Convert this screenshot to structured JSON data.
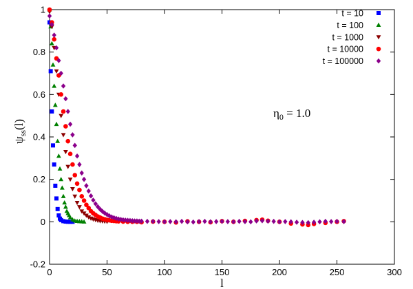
{
  "chart_data": {
    "type": "scatter",
    "xlabel": "l",
    "ylabel": {
      "base": "ψ",
      "sub": "ss",
      "tail": "(l)"
    },
    "xlim": [
      0,
      300
    ],
    "ylim": [
      -0.2,
      1
    ],
    "x_ticks": [
      0,
      50,
      100,
      150,
      200,
      250,
      300
    ],
    "y_ticks": [
      -0.2,
      0,
      0.2,
      0.4,
      0.6,
      0.8,
      1
    ],
    "x_tick_labels": [
      "0",
      "50",
      "100",
      "150",
      "200",
      "250",
      "300"
    ],
    "y_tick_labels": [
      "-0.2",
      "0",
      "0.2",
      "0.4",
      "0.6",
      "0.8",
      "1"
    ],
    "grid": false,
    "legend_position": "top-right",
    "annotation": {
      "base": "η",
      "sub": "0",
      "tail": " = 1.0"
    },
    "series": [
      {
        "name": "t = 10",
        "color": "#0000ff",
        "marker": "square",
        "x": [
          0,
          1,
          2,
          3,
          4,
          5,
          6,
          7,
          8,
          9,
          10,
          12,
          14,
          16,
          18,
          20
        ],
        "y": [
          0.94,
          0.71,
          0.52,
          0.36,
          0.27,
          0.17,
          0.11,
          0.06,
          0.03,
          0.015,
          0.008,
          0.003,
          0.001,
          0,
          0,
          0
        ]
      },
      {
        "name": "t = 100",
        "color": "#008000",
        "marker": "triangle-up",
        "x": [
          0,
          1,
          2,
          3,
          4,
          5,
          6,
          7,
          8,
          9,
          10,
          11,
          12,
          13,
          14,
          15,
          16,
          17,
          18,
          20,
          22,
          24,
          26,
          28,
          30
        ],
        "y": [
          1.0,
          0.92,
          0.84,
          0.74,
          0.64,
          0.55,
          0.46,
          0.38,
          0.31,
          0.25,
          0.2,
          0.16,
          0.12,
          0.09,
          0.07,
          0.05,
          0.04,
          0.03,
          0.02,
          0.01,
          0.005,
          0.003,
          0.002,
          0.001,
          0
        ]
      },
      {
        "name": "t = 1000",
        "color": "#8b0000",
        "marker": "triangle-down",
        "x": [
          0,
          2,
          4,
          6,
          8,
          10,
          12,
          14,
          16,
          18,
          20,
          22,
          24,
          26,
          28,
          30,
          32,
          34,
          36,
          38,
          40,
          42,
          44,
          46,
          48,
          50
        ],
        "y": [
          0.99,
          0.92,
          0.82,
          0.71,
          0.6,
          0.5,
          0.41,
          0.33,
          0.26,
          0.2,
          0.155,
          0.12,
          0.09,
          0.07,
          0.05,
          0.04,
          0.03,
          0.022,
          0.016,
          0.012,
          0.009,
          0.006,
          0.004,
          0.003,
          0.002,
          0.001
        ]
      },
      {
        "name": "t = 10000",
        "color": "#ff0000",
        "marker": "circle",
        "x": [
          0,
          2,
          4,
          6,
          8,
          10,
          12,
          14,
          16,
          18,
          20,
          22,
          24,
          26,
          28,
          30,
          32,
          34,
          36,
          38,
          40,
          42,
          44,
          46,
          48,
          50,
          52,
          54,
          56,
          58,
          60,
          64,
          68,
          72,
          76,
          80,
          90,
          100,
          110,
          120,
          130,
          140,
          150,
          160,
          170,
          180,
          185,
          190,
          200,
          210,
          220,
          225,
          230,
          240,
          250,
          256
        ],
        "y": [
          1.0,
          0.94,
          0.86,
          0.77,
          0.69,
          0.6,
          0.52,
          0.45,
          0.38,
          0.32,
          0.27,
          0.22,
          0.18,
          0.15,
          0.12,
          0.1,
          0.08,
          0.065,
          0.05,
          0.04,
          0.032,
          0.025,
          0.02,
          0.015,
          0.012,
          0.009,
          0.007,
          0.005,
          0.004,
          0.003,
          0.002,
          0.001,
          0,
          0,
          0,
          -0.002,
          0.001,
          0,
          -0.003,
          0.002,
          0,
          -0.002,
          0.003,
          0,
          0.004,
          0.008,
          0.01,
          0.005,
          0,
          -0.008,
          -0.012,
          -0.015,
          -0.01,
          -0.005,
          0,
          0.003
        ]
      },
      {
        "name": "t = 100000",
        "color": "#8b008b",
        "marker": "diamond",
        "x": [
          0,
          2,
          4,
          6,
          8,
          10,
          12,
          14,
          16,
          18,
          20,
          22,
          24,
          26,
          28,
          30,
          32,
          34,
          36,
          38,
          40,
          42,
          44,
          46,
          48,
          50,
          52,
          54,
          56,
          58,
          60,
          62,
          64,
          66,
          68,
          70,
          72,
          74,
          76,
          78,
          80,
          85,
          90,
          95,
          100,
          105,
          110,
          115,
          120,
          125,
          130,
          135,
          140,
          145,
          150,
          155,
          160,
          165,
          170,
          175,
          180,
          185,
          190,
          195,
          200,
          205,
          210,
          215,
          220,
          225,
          230,
          235,
          240,
          245,
          250,
          256
        ],
        "y": [
          0.97,
          0.93,
          0.88,
          0.82,
          0.76,
          0.7,
          0.64,
          0.58,
          0.52,
          0.46,
          0.41,
          0.36,
          0.31,
          0.27,
          0.23,
          0.2,
          0.17,
          0.145,
          0.122,
          0.102,
          0.085,
          0.071,
          0.059,
          0.049,
          0.041,
          0.034,
          0.028,
          0.023,
          0.019,
          0.016,
          0.013,
          0.011,
          0.009,
          0.008,
          0.007,
          0.006,
          0.005,
          0.004,
          0.004,
          0.003,
          0.003,
          0.002,
          0.002,
          0.001,
          0,
          0.001,
          0,
          0.002,
          0,
          -0.001,
          0.001,
          0.002,
          0,
          0.001,
          0.002,
          0.001,
          0,
          0.002,
          0.001,
          0,
          0.004,
          0.005,
          0.003,
          0.002,
          0,
          0.001,
          0,
          -0.002,
          -0.003,
          -0.004,
          -0.002,
          0,
          0.002,
          0.001,
          0.002,
          0.001
        ]
      }
    ]
  }
}
